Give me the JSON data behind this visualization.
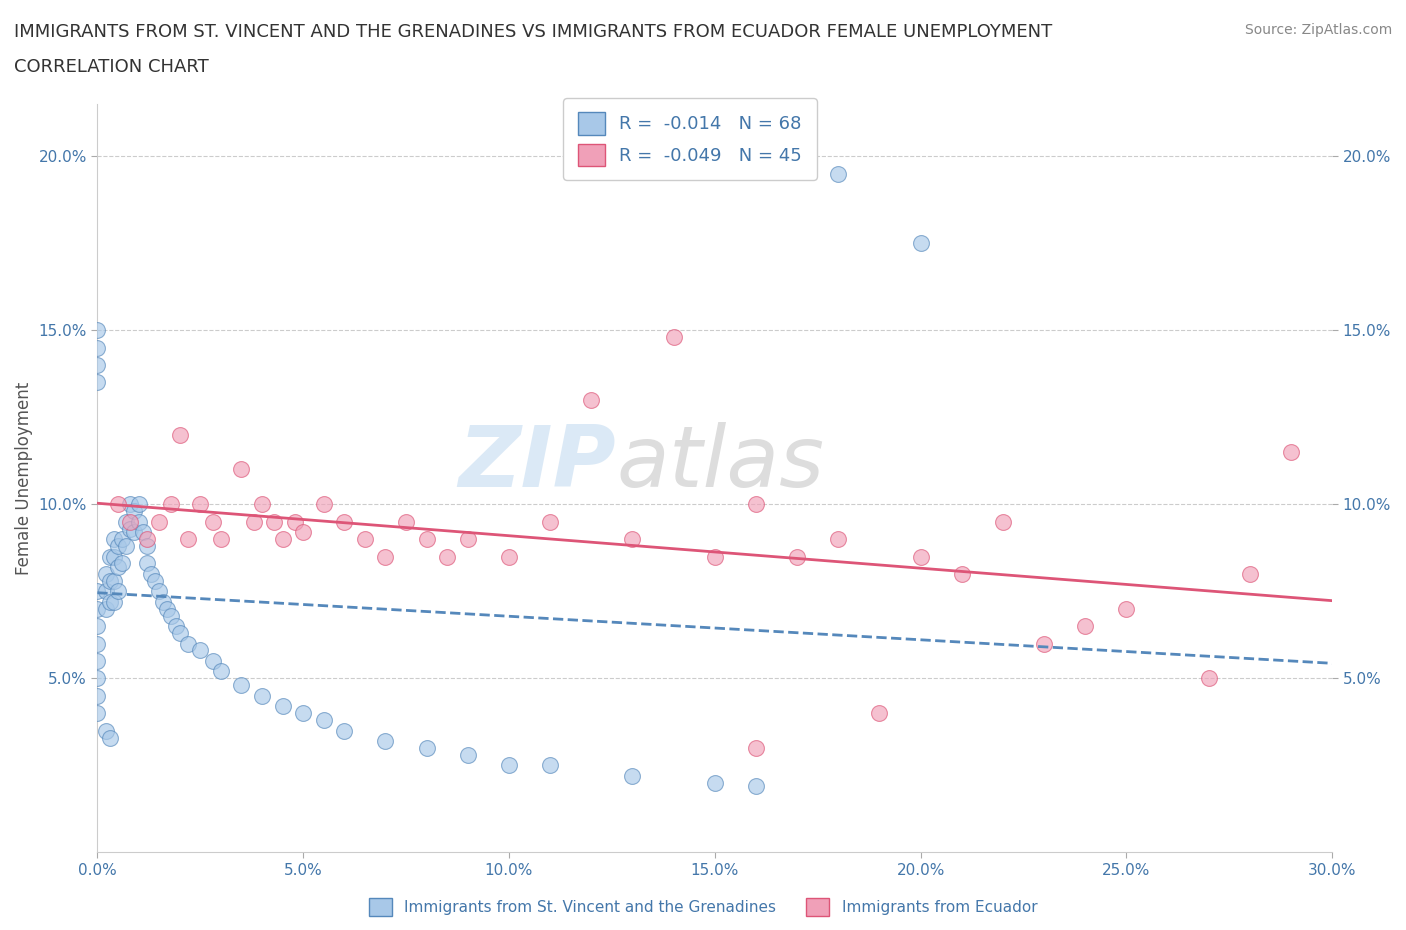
{
  "title_line1": "IMMIGRANTS FROM ST. VINCENT AND THE GRENADINES VS IMMIGRANTS FROM ECUADOR FEMALE UNEMPLOYMENT",
  "title_line2": "CORRELATION CHART",
  "source_text": "Source: ZipAtlas.com",
  "ylabel": "Female Unemployment",
  "legend_label_blue": "Immigrants from St. Vincent and the Grenadines",
  "legend_label_pink": "Immigrants from Ecuador",
  "R_blue": "-0.014",
  "N_blue": "68",
  "R_pink": "-0.049",
  "N_pink": "45",
  "blue_color": "#a8c8e8",
  "pink_color": "#f0a0b8",
  "blue_line_color": "#5588bb",
  "pink_line_color": "#dd5577",
  "watermark_left": "ZIP",
  "watermark_right": "atlas",
  "xlim": [
    0.0,
    0.3
  ],
  "ylim": [
    0.0,
    0.215
  ],
  "xticks": [
    0.0,
    0.05,
    0.1,
    0.15,
    0.2,
    0.25,
    0.3
  ],
  "xticklabels": [
    "0.0%",
    "5.0%",
    "10.0%",
    "15.0%",
    "20.0%",
    "25.0%",
    "30.0%"
  ],
  "yticks_left": [
    0.05,
    0.1,
    0.15,
    0.2
  ],
  "yticklabels_left": [
    "5.0%",
    "10.0%",
    "15.0%",
    "20.0%"
  ],
  "yticks_right": [
    0.05,
    0.1,
    0.15,
    0.2
  ],
  "yticklabels_right": [
    "5.0%",
    "10.0%",
    "15.0%",
    "20.0%"
  ],
  "blue_x": [
    0.0,
    0.0,
    0.0,
    0.0,
    0.0,
    0.0,
    0.0,
    0.0,
    0.002,
    0.002,
    0.002,
    0.003,
    0.003,
    0.003,
    0.004,
    0.004,
    0.004,
    0.004,
    0.005,
    0.005,
    0.005,
    0.006,
    0.006,
    0.007,
    0.007,
    0.008,
    0.008,
    0.009,
    0.009,
    0.01,
    0.01,
    0.011,
    0.012,
    0.012,
    0.013,
    0.014,
    0.015,
    0.016,
    0.017,
    0.018,
    0.019,
    0.02,
    0.022,
    0.025,
    0.028,
    0.03,
    0.035,
    0.04,
    0.045,
    0.05,
    0.055,
    0.06,
    0.07,
    0.08,
    0.09,
    0.1,
    0.11,
    0.13,
    0.15,
    0.16,
    0.0,
    0.0,
    0.0,
    0.0,
    0.002,
    0.003,
    0.18,
    0.2
  ],
  "blue_y": [
    0.075,
    0.07,
    0.065,
    0.06,
    0.055,
    0.05,
    0.045,
    0.04,
    0.08,
    0.075,
    0.07,
    0.085,
    0.078,
    0.072,
    0.09,
    0.085,
    0.078,
    0.072,
    0.088,
    0.082,
    0.075,
    0.09,
    0.083,
    0.095,
    0.088,
    0.1,
    0.093,
    0.098,
    0.092,
    0.1,
    0.095,
    0.092,
    0.088,
    0.083,
    0.08,
    0.078,
    0.075,
    0.072,
    0.07,
    0.068,
    0.065,
    0.063,
    0.06,
    0.058,
    0.055,
    0.052,
    0.048,
    0.045,
    0.042,
    0.04,
    0.038,
    0.035,
    0.032,
    0.03,
    0.028,
    0.025,
    0.025,
    0.022,
    0.02,
    0.019,
    0.15,
    0.145,
    0.14,
    0.135,
    0.035,
    0.033,
    0.195,
    0.175
  ],
  "pink_x": [
    0.005,
    0.008,
    0.012,
    0.015,
    0.018,
    0.02,
    0.022,
    0.025,
    0.028,
    0.03,
    0.035,
    0.038,
    0.04,
    0.043,
    0.045,
    0.048,
    0.05,
    0.055,
    0.06,
    0.065,
    0.07,
    0.075,
    0.08,
    0.085,
    0.09,
    0.1,
    0.11,
    0.12,
    0.13,
    0.15,
    0.16,
    0.17,
    0.18,
    0.19,
    0.2,
    0.21,
    0.22,
    0.23,
    0.24,
    0.25,
    0.27,
    0.28,
    0.29,
    0.14,
    0.16
  ],
  "pink_y": [
    0.1,
    0.095,
    0.09,
    0.095,
    0.1,
    0.12,
    0.09,
    0.1,
    0.095,
    0.09,
    0.11,
    0.095,
    0.1,
    0.095,
    0.09,
    0.095,
    0.092,
    0.1,
    0.095,
    0.09,
    0.085,
    0.095,
    0.09,
    0.085,
    0.09,
    0.085,
    0.095,
    0.13,
    0.09,
    0.085,
    0.1,
    0.085,
    0.09,
    0.04,
    0.085,
    0.08,
    0.095,
    0.06,
    0.065,
    0.07,
    0.05,
    0.08,
    0.115,
    0.148,
    0.03
  ],
  "background_color": "#ffffff",
  "grid_color": "#cccccc",
  "axis_color": "#555555",
  "tick_color": "#4477aa",
  "title_color": "#333333"
}
